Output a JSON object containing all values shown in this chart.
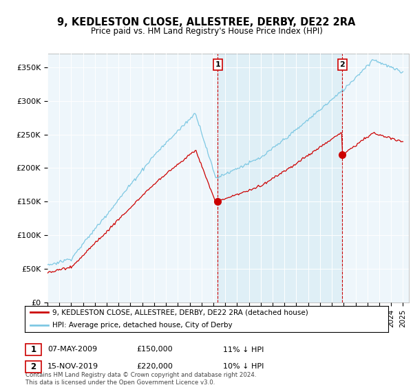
{
  "title": "9, KEDLESTON CLOSE, ALLESTREE, DERBY, DE22 2RA",
  "subtitle": "Price paid vs. HM Land Registry's House Price Index (HPI)",
  "ylabel_ticks": [
    "£0",
    "£50K",
    "£100K",
    "£150K",
    "£200K",
    "£250K",
    "£300K",
    "£350K"
  ],
  "ytick_values": [
    0,
    50000,
    100000,
    150000,
    200000,
    250000,
    300000,
    350000
  ],
  "ylim": [
    0,
    370000
  ],
  "sale1_year": 2009.37,
  "sale1_price": 150000,
  "sale1_pct": "11%",
  "sale1_date": "07-MAY-2009",
  "sale2_year": 2019.88,
  "sale2_price": 220000,
  "sale2_pct": "10%",
  "sale2_date": "15-NOV-2019",
  "legend_label1": "9, KEDLESTON CLOSE, ALLESTREE, DERBY, DE22 2RA (detached house)",
  "legend_label2": "HPI: Average price, detached house, City of Derby",
  "footnote": "Contains HM Land Registry data © Crown copyright and database right 2024.\nThis data is licensed under the Open Government Licence v3.0.",
  "line_color_sale": "#cc0000",
  "line_color_hpi": "#7ec8e3",
  "shade_color": "#ddeef6",
  "background_color": "#ffffff",
  "plot_bg_color": "#eef6fb",
  "xlim_start": 1995,
  "xlim_end": 2025.5
}
